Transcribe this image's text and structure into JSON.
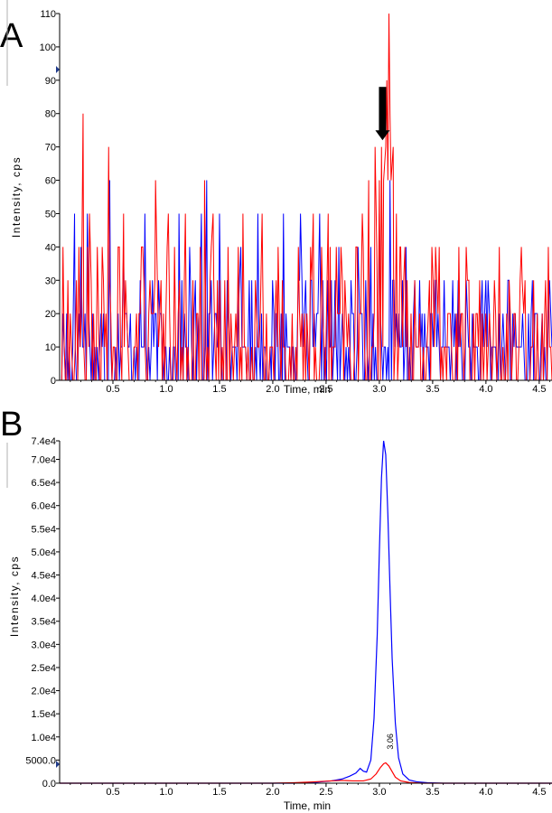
{
  "chart_data": [
    {
      "panel": "A",
      "type": "line",
      "xlabel": "Time, min",
      "ylabel": "Intensity, cps",
      "xlim": [
        0.0,
        4.62
      ],
      "ylim": [
        0,
        110
      ],
      "x_ticks": [
        0.5,
        1.0,
        1.5,
        2.0,
        2.5,
        3.0,
        3.5,
        4.0,
        4.5
      ],
      "x_tick_labels": [
        "0.5",
        "1.0",
        "1.5",
        "2.0",
        "2.5",
        "3.0",
        "3.5",
        "4.0",
        "4.5"
      ],
      "y_ticks": [
        0,
        10,
        20,
        30,
        40,
        50,
        60,
        70,
        80,
        90,
        100,
        110
      ],
      "y_tick_labels": [
        "0",
        "10",
        "20",
        "30",
        "40",
        "50",
        "60",
        "70",
        "80",
        "90",
        "100",
        "110"
      ],
      "series": [
        {
          "name": "blue trace",
          "color": "#0000ff",
          "noise": {
            "x_start": 0.02,
            "x_end": 4.62,
            "step": 0.0115,
            "levels": [
              0,
              10,
              20,
              30
            ],
            "weights": [
              0.34,
              0.36,
              0.2,
              0.1
            ]
          },
          "spikes": [
            [
              0.14,
              50
            ],
            [
              0.2,
              40
            ],
            [
              0.26,
              50
            ],
            [
              0.47,
              60
            ],
            [
              0.6,
              40
            ],
            [
              0.8,
              50
            ],
            [
              1.12,
              50
            ],
            [
              1.22,
              40
            ],
            [
              1.33,
              50
            ],
            [
              1.38,
              60
            ],
            [
              1.5,
              50
            ],
            [
              1.7,
              40
            ],
            [
              1.86,
              50
            ],
            [
              2.1,
              50
            ],
            [
              2.26,
              50
            ],
            [
              2.44,
              50
            ],
            [
              2.62,
              40
            ],
            [
              2.8,
              40
            ],
            [
              2.92,
              40
            ],
            [
              3.0,
              50
            ],
            [
              3.1,
              60
            ],
            [
              3.25,
              40
            ],
            [
              3.52,
              30
            ],
            [
              3.74,
              30
            ],
            [
              4.02,
              30
            ],
            [
              4.2,
              20
            ],
            [
              4.4,
              20
            ]
          ]
        },
        {
          "name": "red trace",
          "color": "#ff0000",
          "noise": {
            "x_start": 0.02,
            "x_end": 4.62,
            "step": 0.0115,
            "levels": [
              0,
              10,
              20,
              30,
              40
            ],
            "weights": [
              0.4,
              0.24,
              0.18,
              0.1,
              0.08
            ]
          },
          "spikes": [
            [
              0.1,
              20
            ],
            [
              0.22,
              80
            ],
            [
              0.28,
              50
            ],
            [
              0.46,
              70
            ],
            [
              0.6,
              50
            ],
            [
              0.78,
              40
            ],
            [
              0.9,
              60
            ],
            [
              1.02,
              50
            ],
            [
              1.18,
              50
            ],
            [
              1.36,
              60
            ],
            [
              1.44,
              50
            ],
            [
              1.58,
              40
            ],
            [
              1.72,
              50
            ],
            [
              1.9,
              50
            ],
            [
              2.05,
              40
            ],
            [
              2.24,
              40
            ],
            [
              2.38,
              50
            ],
            [
              2.52,
              50
            ],
            [
              2.64,
              40
            ],
            [
              2.78,
              40
            ],
            [
              2.84,
              50
            ],
            [
              2.9,
              60
            ],
            [
              2.96,
              70
            ],
            [
              3.0,
              60
            ],
            [
              3.02,
              70
            ],
            [
              3.04,
              60
            ],
            [
              3.06,
              70
            ],
            [
              3.07,
              90
            ],
            [
              3.08,
              60
            ],
            [
              3.09,
              110
            ],
            [
              3.1,
              80
            ],
            [
              3.11,
              60
            ],
            [
              3.13,
              70
            ],
            [
              3.16,
              50
            ],
            [
              3.2,
              40
            ],
            [
              3.26,
              30
            ],
            [
              3.46,
              20
            ],
            [
              3.84,
              30
            ],
            [
              4.34,
              30
            ],
            [
              4.56,
              30
            ]
          ]
        }
      ],
      "annotations": [
        {
          "type": "arrow",
          "x": 3.03,
          "y_from": 88,
          "y_to": 72,
          "color": "#000000"
        }
      ]
    },
    {
      "panel": "B",
      "type": "line",
      "xlabel": "Time, min",
      "ylabel": "Intensity, cps",
      "xlim": [
        0.0,
        4.62
      ],
      "ylim": [
        0,
        74000
      ],
      "x_ticks": [
        0.5,
        1.0,
        1.5,
        2.0,
        2.5,
        3.0,
        3.5,
        4.0,
        4.5
      ],
      "x_tick_labels": [
        "0.5",
        "1.0",
        "1.5",
        "2.0",
        "2.5",
        "3.0",
        "3.5",
        "4.0",
        "4.5"
      ],
      "y_ticks": [
        0,
        5000,
        10000,
        15000,
        20000,
        25000,
        30000,
        35000,
        40000,
        45000,
        50000,
        55000,
        60000,
        65000,
        70000,
        74000
      ],
      "y_tick_labels": [
        "0.0",
        "5000.0",
        "1.0e4",
        "1.5e4",
        "2.0e4",
        "2.5e4",
        "3.0e4",
        "3.5e4",
        "4.0e4",
        "4.5e4",
        "5.0e4",
        "5.5e4",
        "6.0e4",
        "6.5e4",
        "7.0e4",
        "7.4e4"
      ],
      "series": [
        {
          "name": "blue trace",
          "color": "#0000ff",
          "x": [
            0.0,
            0.5,
            1.0,
            1.5,
            2.0,
            2.2,
            2.4,
            2.55,
            2.65,
            2.72,
            2.78,
            2.82,
            2.85,
            2.88,
            2.92,
            2.95,
            2.98,
            3.0,
            3.02,
            3.04,
            3.06,
            3.08,
            3.1,
            3.12,
            3.15,
            3.18,
            3.22,
            3.28,
            3.35,
            3.45,
            3.6,
            4.0,
            4.62
          ],
          "y": [
            0,
            0,
            0,
            0,
            0,
            0,
            200,
            500,
            900,
            1500,
            2200,
            3200,
            2600,
            2400,
            5000,
            14000,
            32000,
            50000,
            66000,
            74000,
            71000,
            58000,
            42000,
            27000,
            13000,
            5500,
            2000,
            700,
            300,
            100,
            0,
            0,
            0
          ]
        },
        {
          "name": "red trace",
          "color": "#ff0000",
          "x": [
            0.0,
            0.5,
            1.0,
            1.5,
            2.0,
            2.2,
            2.4,
            2.55,
            2.65,
            2.75,
            2.85,
            2.92,
            2.97,
            3.01,
            3.04,
            3.06,
            3.09,
            3.12,
            3.15,
            3.2,
            3.28,
            3.4,
            4.0,
            4.62
          ],
          "y": [
            0,
            0,
            0,
            0,
            0,
            100,
            300,
            500,
            600,
            500,
            500,
            900,
            2000,
            3400,
            4200,
            4400,
            3700,
            2500,
            1300,
            500,
            150,
            0,
            0,
            0
          ]
        }
      ],
      "annotations": [
        {
          "type": "peak_label",
          "x": 3.06,
          "text": "3.06",
          "rotation": "vertical"
        }
      ]
    }
  ],
  "panels": {
    "a": {
      "letter": "A"
    },
    "b": {
      "letter": "B"
    }
  }
}
